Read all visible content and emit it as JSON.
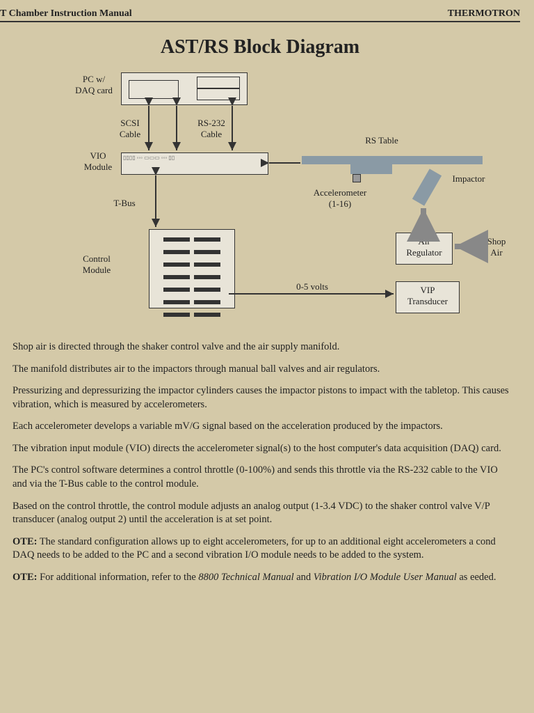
{
  "header": {
    "left": "T Chamber Instruction Manual",
    "right": "THERMOTRON"
  },
  "title": "AST/RS Block Diagram",
  "diagram": {
    "labels": {
      "pc": "PC w/\nDAQ card",
      "scsi": "SCSI\nCable",
      "rs232": "RS-232\nCable",
      "vio": "VIO\nModule",
      "tbus": "T-Bus",
      "control": "Control\nModule",
      "rs_table": "RS Table",
      "accel": "Accelerometer\n(1-16)",
      "impactor": "Impactor",
      "air_reg": "Air\nRegulator",
      "shop_air": "Shop\nAir",
      "volts": "0-5 volts",
      "vip": "VIP\nTransducer"
    },
    "colors": {
      "block_border": "#333333",
      "block_fill": "#e8e4d8",
      "metal": "#8a9aa5",
      "arrow": "#333333",
      "arrow_shop": "#888888"
    }
  },
  "paragraphs": [
    "Shop air is directed through the shaker control valve and the air supply manifold.",
    "The manifold distributes air to the impactors through manual ball valves and air regulators.",
    "Pressurizing and depressurizing the impactor cylinders causes the impactor pistons to impact with the tabletop. This causes vibration, which is measured by accelerometers.",
    "Each accelerometer develops a variable mV/G signal based on the acceleration produced by the impactors.",
    "The vibration input module (VIO) directs the accelerometer signal(s) to the host computer's data acquisition (DAQ) card.",
    "The PC's control software determines a control throttle (0-100%) and sends this throttle via the RS-232 cable to the VIO and via the T-Bus cable to the control module.",
    "Based on the control throttle, the control module adjusts an analog output (1-3.4 VDC) to the shaker control valve V/P transducer (analog output 2) until the acceleration is at set point."
  ],
  "notes": [
    {
      "label": "OTE:",
      "text": "The standard configuration allows up to eight accelerometers, for up to an additional eight accelerometers a cond DAQ needs to be added to the PC and a second vibration I/O module needs to be added to the system."
    },
    {
      "label": "OTE:",
      "text_pre": "For additional information, refer to the ",
      "ref1": "8800 Technical Manual",
      "text_mid": " and ",
      "ref2": "Vibration I/O Module User Manual",
      "text_post": " as eeded."
    }
  ]
}
